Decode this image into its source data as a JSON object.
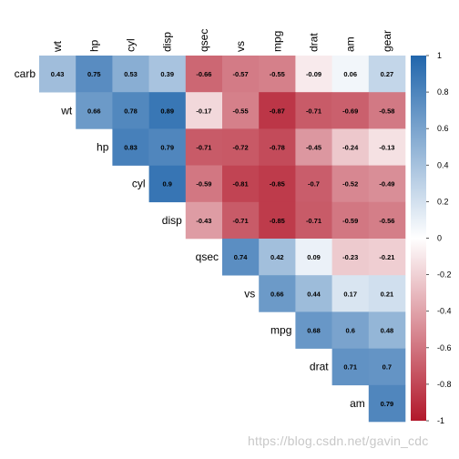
{
  "chart_data": {
    "type": "heatmap",
    "columns": [
      "wt",
      "hp",
      "cyl",
      "disp",
      "qsec",
      "vs",
      "mpg",
      "drat",
      "am",
      "gear"
    ],
    "rows": [
      "carb",
      "wt",
      "hp",
      "cyl",
      "disp",
      "qsec",
      "vs",
      "mpg",
      "drat",
      "am"
    ],
    "values": [
      [
        0.43,
        0.75,
        0.53,
        0.39,
        -0.66,
        -0.57,
        -0.55,
        -0.09,
        0.06,
        0.27
      ],
      [
        null,
        0.66,
        0.78,
        0.89,
        -0.17,
        -0.55,
        -0.87,
        -0.71,
        -0.69,
        -0.58
      ],
      [
        null,
        null,
        0.83,
        0.79,
        -0.71,
        -0.72,
        -0.78,
        -0.45,
        -0.24,
        -0.13
      ],
      [
        null,
        null,
        null,
        0.9,
        -0.59,
        -0.81,
        -0.85,
        -0.7,
        -0.52,
        -0.49
      ],
      [
        null,
        null,
        null,
        null,
        -0.43,
        -0.71,
        -0.85,
        -0.71,
        -0.59,
        -0.56
      ],
      [
        null,
        null,
        null,
        null,
        null,
        0.74,
        0.42,
        0.09,
        -0.23,
        -0.21
      ],
      [
        null,
        null,
        null,
        null,
        null,
        null,
        0.66,
        0.44,
        0.17,
        0.21
      ],
      [
        null,
        null,
        null,
        null,
        null,
        null,
        null,
        0.68,
        0.6,
        0.48
      ],
      [
        null,
        null,
        null,
        null,
        null,
        null,
        null,
        null,
        0.71,
        0.7
      ],
      [
        null,
        null,
        null,
        null,
        null,
        null,
        null,
        null,
        null,
        0.79
      ]
    ],
    "colorbar": {
      "ticks": [
        1,
        0.8,
        0.6,
        0.4,
        0.2,
        0,
        -0.2,
        -0.4,
        -0.6,
        -0.8,
        -1
      ],
      "tick_labels": [
        "1",
        "0.8",
        "0.6",
        "0.4",
        "0.2",
        "0",
        "-0.2",
        "-0.4",
        "-0.6",
        "-0.8",
        "-1"
      ],
      "range": [
        -1,
        1
      ],
      "colors": {
        "high": "#2166ac",
        "mid": "#ffffff",
        "low": "#b2182b"
      }
    }
  },
  "watermark": "https://blog.csdn.net/gavin_cdc"
}
